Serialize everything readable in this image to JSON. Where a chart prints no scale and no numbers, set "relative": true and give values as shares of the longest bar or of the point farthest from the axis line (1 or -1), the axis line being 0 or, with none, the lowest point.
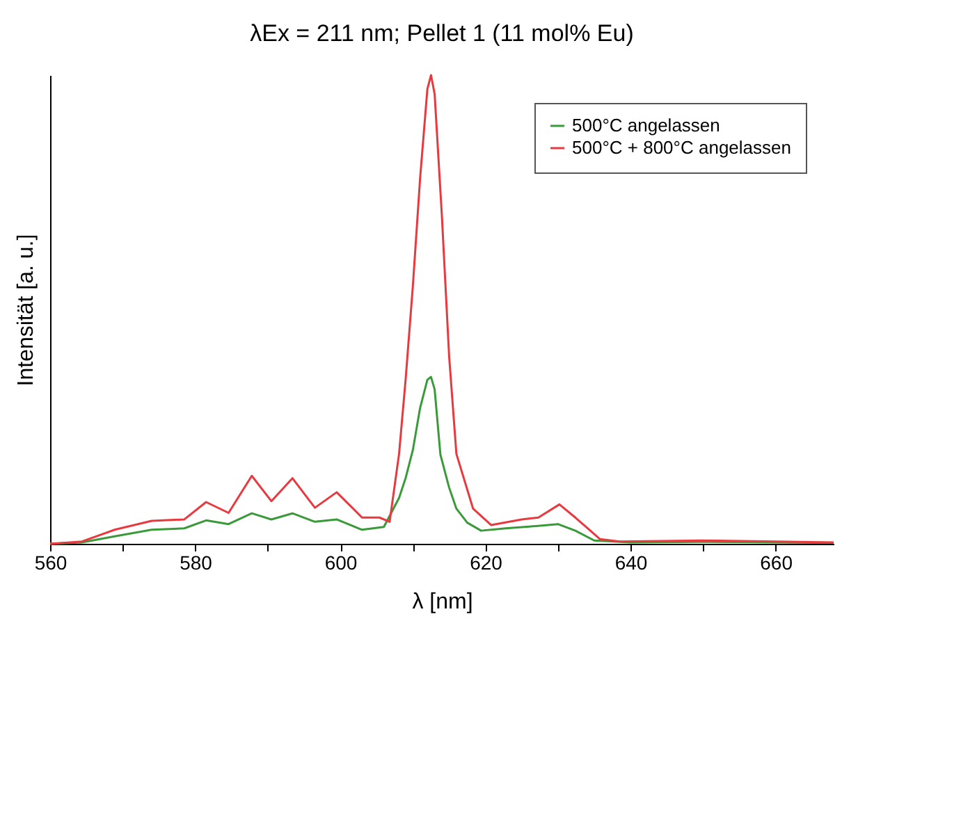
{
  "chart_data": {
    "type": "line",
    "title": "λEx = 211 nm; Pellet 1 (11 mol% Eu)",
    "xlabel": "λ [nm]",
    "ylabel": "Intensität [a. u.]",
    "relative": true,
    "xlim": [
      560,
      668
    ],
    "xticks": [
      560,
      {
        "value": 570,
        "label": null
      },
      580,
      {
        "value": 590,
        "label": null
      },
      600,
      {
        "value": 610,
        "label": null
      },
      620,
      {
        "value": 630,
        "label": null
      },
      640,
      {
        "value": 650,
        "label": null
      },
      660
    ],
    "legend": "top right",
    "grid": false,
    "series": [
      {
        "name": "500°C angelassen",
        "color": "#3a9a3a",
        "x": [
          560,
          564.4,
          568.9,
          574,
          578.5,
          581.5,
          584.6,
          587.8,
          590.5,
          593.4,
          596.5,
          599.5,
          603,
          606,
          608.1,
          609,
          610,
          611,
          612,
          612.5,
          613,
          613.8,
          615,
          616,
          617.5,
          619.4,
          622.8,
          627,
          630,
          632.4,
          635,
          640,
          650,
          660,
          668
        ],
        "values": [
          0,
          0.003,
          0.016,
          0.03,
          0.033,
          0.05,
          0.042,
          0.065,
          0.052,
          0.065,
          0.047,
          0.052,
          0.03,
          0.036,
          0.098,
          0.14,
          0.2,
          0.29,
          0.35,
          0.356,
          0.33,
          0.19,
          0.12,
          0.075,
          0.045,
          0.028,
          0.033,
          0.038,
          0.042,
          0.028,
          0.007,
          0.003,
          0.004,
          0.003,
          0.002
        ]
      },
      {
        "name": "500°C + 800°C angelassen",
        "color": "#e8393f",
        "x": [
          560,
          564.4,
          568.9,
          574,
          578.5,
          581.5,
          584.6,
          587.8,
          590.5,
          593.4,
          596.5,
          599.5,
          603,
          605.4,
          606.8,
          608.1,
          609,
          610,
          611,
          612,
          612.5,
          613,
          614,
          615,
          616,
          618.3,
          620.8,
          625,
          627.3,
          630.2,
          632.4,
          635.8,
          638.5,
          650,
          660,
          668
        ],
        "values": [
          0,
          0.005,
          0.03,
          0.049,
          0.052,
          0.089,
          0.066,
          0.145,
          0.091,
          0.14,
          0.077,
          0.11,
          0.056,
          0.056,
          0.047,
          0.192,
          0.35,
          0.55,
          0.78,
          0.97,
          1,
          0.96,
          0.7,
          0.4,
          0.192,
          0.075,
          0.04,
          0.052,
          0.056,
          0.084,
          0.056,
          0.01,
          0.005,
          0.007,
          0.005,
          0.003
        ]
      }
    ]
  }
}
